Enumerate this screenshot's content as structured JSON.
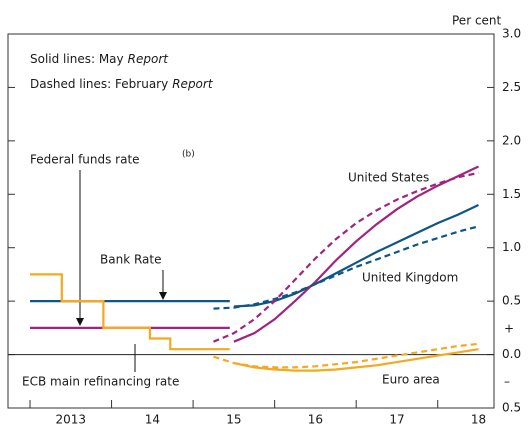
{
  "chart_data": {
    "type": "line",
    "unit_label": "Per cent",
    "notes": [
      {
        "text": "Solid lines:  May",
        "italic": "Report"
      },
      {
        "text": "Dashed lines:  February",
        "italic": "Report"
      }
    ],
    "annotations": {
      "bank_rate": "Bank Rate",
      "fed": "Federal funds rate",
      "fed_note": "(b)",
      "ecb": "ECB main refinancing rate",
      "us": "United States",
      "uk": "United Kingdom",
      "euro": "Euro area",
      "plus": "+",
      "minus": "–"
    },
    "xlim": [
      2012.73,
      2018.69
    ],
    "xticks": [
      {
        "value": 2013.5,
        "label": "2013"
      },
      {
        "value": 2014.5,
        "label": "14"
      },
      {
        "value": 2015.5,
        "label": "15"
      },
      {
        "value": 2016.5,
        "label": "16"
      },
      {
        "value": 2017.5,
        "label": "17"
      },
      {
        "value": 2018.5,
        "label": "18"
      }
    ],
    "ylim": [
      -0.5,
      3.0
    ],
    "yticks": [
      {
        "value": -0.5,
        "label": "0.5"
      },
      {
        "value": 0,
        "label": "0.0"
      },
      {
        "value": 0.5,
        "label": "0.5"
      },
      {
        "value": 1,
        "label": "1.0"
      },
      {
        "value": 1.5,
        "label": "1.5"
      },
      {
        "value": 2,
        "label": "2.0"
      },
      {
        "value": 2.5,
        "label": "2.5"
      },
      {
        "value": 3,
        "label": "3.0"
      }
    ],
    "series": [
      {
        "color": "#0f5585",
        "dashed": false,
        "x": [
          2013,
          2015.45
        ],
        "values": [
          0.5,
          0.5
        ]
      },
      {
        "color": "#a3227f",
        "dashed": false,
        "x": [
          2013,
          2015.45
        ],
        "values": [
          0.25,
          0.25
        ]
      },
      {
        "color": "#f6a81e",
        "dashed": false,
        "x": [
          2013,
          2013.39,
          2013.39,
          2013.9,
          2013.9,
          2014.47,
          2014.47,
          2014.72,
          2014.72,
          2015.45
        ],
        "values": [
          0.75,
          0.75,
          0.5,
          0.5,
          0.25,
          0.25,
          0.15,
          0.15,
          0.05,
          0.05
        ]
      },
      {
        "color": "#0f5585",
        "dashed": false,
        "x": [
          2015.5,
          2015.75,
          2016,
          2016.25,
          2016.5,
          2016.75,
          2017,
          2017.25,
          2017.5,
          2017.75,
          2018,
          2018.25,
          2018.5
        ],
        "values": [
          0.45,
          0.46,
          0.5,
          0.57,
          0.66,
          0.76,
          0.86,
          0.96,
          1.05,
          1.14,
          1.23,
          1.31,
          1.4
        ]
      },
      {
        "color": "#a3227f",
        "dashed": false,
        "x": [
          2015.5,
          2015.75,
          2016,
          2016.25,
          2016.5,
          2016.75,
          2017,
          2017.25,
          2017.5,
          2017.75,
          2018,
          2018.25,
          2018.5
        ],
        "values": [
          0.12,
          0.2,
          0.33,
          0.5,
          0.68,
          0.88,
          1.06,
          1.22,
          1.36,
          1.48,
          1.58,
          1.67,
          1.76
        ]
      },
      {
        "color": "#f6a81e",
        "dashed": false,
        "x": [
          2015.5,
          2015.75,
          2016,
          2016.25,
          2016.5,
          2016.75,
          2017,
          2017.25,
          2017.5,
          2017.75,
          2018,
          2018.25,
          2018.5
        ],
        "values": [
          -0.08,
          -0.12,
          -0.14,
          -0.15,
          -0.15,
          -0.14,
          -0.12,
          -0.1,
          -0.07,
          -0.04,
          -0.01,
          0.02,
          0.05
        ]
      },
      {
        "color": "#0f5585",
        "dashed": true,
        "x": [
          2015.25,
          2015.5,
          2015.75,
          2016,
          2016.25,
          2016.5,
          2016.75,
          2017,
          2017.25,
          2017.5,
          2017.75,
          2018,
          2018.25,
          2018.5
        ],
        "values": [
          0.43,
          0.44,
          0.47,
          0.52,
          0.58,
          0.66,
          0.74,
          0.82,
          0.89,
          0.96,
          1.03,
          1.09,
          1.15,
          1.2
        ]
      },
      {
        "color": "#a3227f",
        "dashed": true,
        "x": [
          2015.25,
          2015.5,
          2015.75,
          2016,
          2016.25,
          2016.5,
          2016.75,
          2017,
          2017.25,
          2017.5,
          2017.75,
          2018,
          2018.25,
          2018.5
        ],
        "values": [
          0.12,
          0.2,
          0.33,
          0.5,
          0.7,
          0.9,
          1.08,
          1.23,
          1.35,
          1.45,
          1.53,
          1.6,
          1.66,
          1.7
        ]
      },
      {
        "color": "#f6a81e",
        "dashed": true,
        "x": [
          2015.25,
          2015.5,
          2015.75,
          2016,
          2016.25,
          2016.5,
          2016.75,
          2017,
          2017.25,
          2017.5,
          2017.75,
          2018,
          2018.25,
          2018.5
        ],
        "values": [
          -0.02,
          -0.08,
          -0.11,
          -0.12,
          -0.12,
          -0.11,
          -0.09,
          -0.07,
          -0.04,
          -0.01,
          0.02,
          0.05,
          0.08,
          0.1
        ]
      }
    ]
  }
}
